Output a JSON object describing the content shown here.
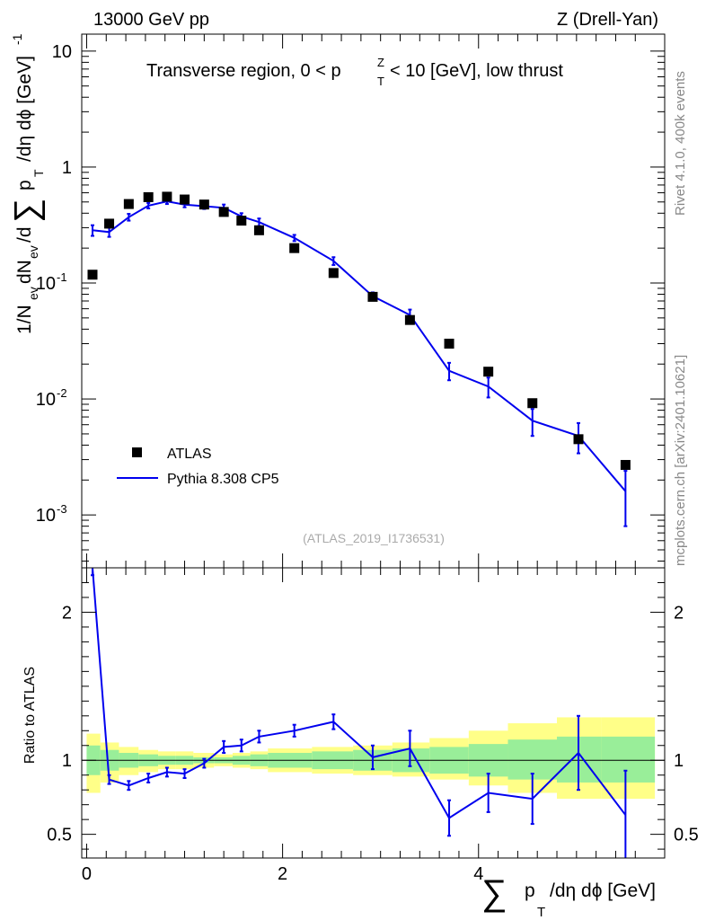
{
  "header": {
    "left": "13000 GeV pp",
    "right": "Z (Drell-Yan)"
  },
  "side_labels": {
    "rivet": "Rivet 4.1.0,  400k events",
    "mcplots": "mcplots.cern.ch [arXiv:2401.10621]"
  },
  "chart_data": [
    {
      "panel": "main",
      "type": "scatter",
      "title": "Transverse region, 0 < p_T^Z < 10 [GeV], low thrust",
      "analysis_id": "(ATLAS_2019_I1736531)",
      "xlabel": "Σ p_T /dη dφ [GeV]",
      "ylabel": "1/N_ev dN_ev/dΣ p_T /dη dφ [GeV]^-1",
      "yscale": "log",
      "xlim": [
        -0.05,
        5.9
      ],
      "ylim": [
        0.00035,
        14
      ],
      "y_ticks": [
        {
          "value": 10,
          "label": "10"
        },
        {
          "value": 1,
          "label": "1"
        },
        {
          "value": 0.1,
          "label": "10^-1"
        },
        {
          "value": 0.01,
          "label": "10^-2"
        },
        {
          "value": 0.001,
          "label": "10^-3"
        }
      ],
      "legend": {
        "position": "bottom-left",
        "entries": [
          "ATLAS",
          "Pythia 8.308 CP5"
        ]
      },
      "series": [
        {
          "name": "ATLAS",
          "style": "markers",
          "color": "#000000",
          "x": [
            0.06,
            0.23,
            0.43,
            0.63,
            0.82,
            1.0,
            1.2,
            1.4,
            1.58,
            1.76,
            2.12,
            2.52,
            2.92,
            3.3,
            3.7,
            4.1,
            4.55,
            5.02,
            5.5
          ],
          "y": [
            0.118,
            0.325,
            0.48,
            0.55,
            0.555,
            0.525,
            0.475,
            0.41,
            0.345,
            0.285,
            0.2,
            0.122,
            0.076,
            0.048,
            0.03,
            0.0172,
            0.0092,
            0.0045,
            0.0027
          ]
        },
        {
          "name": "Pythia 8.308 CP5",
          "style": "line",
          "color": "#0000ee",
          "x": [
            0.06,
            0.23,
            0.43,
            0.63,
            0.82,
            1.0,
            1.2,
            1.4,
            1.58,
            1.76,
            2.12,
            2.52,
            2.92,
            3.3,
            3.7,
            4.1,
            4.55,
            5.02,
            5.5
          ],
          "y": [
            0.285,
            0.275,
            0.37,
            0.465,
            0.505,
            0.475,
            0.46,
            0.445,
            0.375,
            0.335,
            0.245,
            0.155,
            0.077,
            0.053,
            0.0175,
            0.0128,
            0.0065,
            0.0048,
            0.0016
          ],
          "yerr": [
            0.03,
            0.025,
            0.025,
            0.025,
            0.025,
            0.025,
            0.025,
            0.03,
            0.025,
            0.025,
            0.015,
            0.012,
            0.006,
            0.006,
            0.003,
            0.0025,
            0.0017,
            0.0014,
            0.0008
          ]
        }
      ]
    },
    {
      "panel": "ratio",
      "type": "line",
      "ylabel": "Ratio to ATLAS",
      "xlabel": "Σ p_T /dη dφ [GeV]",
      "xlim": [
        -0.05,
        5.9
      ],
      "ylim": [
        0.34,
        2.3
      ],
      "y_ticks": [
        {
          "value": 2,
          "label": "2"
        },
        {
          "value": 1,
          "label": "1"
        },
        {
          "value": 0.5,
          "label": "0.5"
        }
      ],
      "x_ticks": [
        {
          "value": 0,
          "label": "0"
        },
        {
          "value": 2,
          "label": "2"
        },
        {
          "value": 4,
          "label": "4"
        }
      ],
      "bands": {
        "edges": [
          0.0,
          0.14,
          0.33,
          0.53,
          0.73,
          0.91,
          1.09,
          1.3,
          1.49,
          1.67,
          1.85,
          2.3,
          2.72,
          3.12,
          3.5,
          3.9,
          4.3,
          4.8,
          5.25,
          5.8
        ],
        "stat_lo": [
          0.9,
          0.93,
          0.95,
          0.96,
          0.97,
          0.97,
          0.98,
          0.98,
          0.97,
          0.96,
          0.95,
          0.94,
          0.93,
          0.92,
          0.91,
          0.89,
          0.87,
          0.85,
          0.85
        ],
        "stat_hi": [
          1.1,
          1.07,
          1.05,
          1.04,
          1.03,
          1.03,
          1.02,
          1.02,
          1.03,
          1.04,
          1.05,
          1.06,
          1.07,
          1.08,
          1.09,
          1.11,
          1.14,
          1.16,
          1.16
        ],
        "total_lo": [
          0.78,
          0.85,
          0.9,
          0.92,
          0.94,
          0.94,
          0.95,
          0.96,
          0.95,
          0.94,
          0.92,
          0.91,
          0.9,
          0.89,
          0.87,
          0.83,
          0.78,
          0.74,
          0.74
        ],
        "total_hi": [
          1.18,
          1.12,
          1.09,
          1.07,
          1.06,
          1.06,
          1.05,
          1.04,
          1.05,
          1.06,
          1.08,
          1.09,
          1.1,
          1.12,
          1.15,
          1.2,
          1.25,
          1.29,
          1.29
        ],
        "stat_color": "#99ee99",
        "total_color": "#ffff88"
      },
      "series": [
        {
          "name": "Pythia 8.308 CP5 / ATLAS",
          "color": "#0000ee",
          "x": [
            0.06,
            0.23,
            0.43,
            0.63,
            0.82,
            1.0,
            1.2,
            1.4,
            1.58,
            1.76,
            2.12,
            2.52,
            2.92,
            3.3,
            3.7,
            4.1,
            4.55,
            5.02,
            5.5
          ],
          "y": [
            2.35,
            0.87,
            0.83,
            0.88,
            0.92,
            0.91,
            0.98,
            1.09,
            1.1,
            1.16,
            1.2,
            1.26,
            1.02,
            1.08,
            0.61,
            0.78,
            0.74,
            1.05,
            0.63
          ],
          "yerr": [
            0.1,
            0.03,
            0.03,
            0.03,
            0.03,
            0.03,
            0.03,
            0.04,
            0.04,
            0.04,
            0.04,
            0.05,
            0.08,
            0.12,
            0.12,
            0.13,
            0.17,
            0.25,
            0.3
          ]
        }
      ]
    }
  ]
}
